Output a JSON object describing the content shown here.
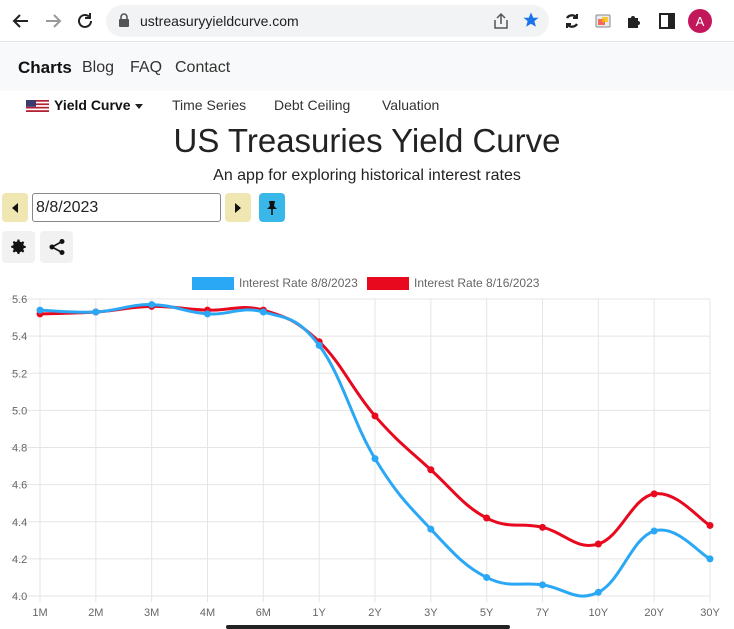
{
  "browser": {
    "url": "ustreasuryyieldcurve.com",
    "avatar_initial": "A"
  },
  "nav": {
    "brand": "Charts",
    "links": [
      "Blog",
      "FAQ",
      "Contact"
    ]
  },
  "subnav": {
    "active": "Yield Curve",
    "items": [
      "Time Series",
      "Debt Ceiling",
      "Valuation"
    ]
  },
  "page": {
    "title": "US Treasuries Yield Curve",
    "subtitle": "An app for exploring historical interest rates"
  },
  "controls": {
    "date_value": "8/8/2023"
  },
  "colors": {
    "series1": "#2ba8f5",
    "series2": "#e8091e",
    "grid": "#e5e5e5"
  },
  "chart_data": {
    "type": "line",
    "categories": [
      "1M",
      "2M",
      "3M",
      "4M",
      "6M",
      "1Y",
      "2Y",
      "3Y",
      "5Y",
      "7Y",
      "10Y",
      "20Y",
      "30Y"
    ],
    "ylim": [
      4.0,
      5.6
    ],
    "yticks": [
      "4.0",
      "4.2",
      "4.4",
      "4.6",
      "4.8",
      "5.0",
      "5.2",
      "5.4",
      "5.6"
    ],
    "grid": true,
    "legend_position": "top",
    "series": [
      {
        "name": "Interest Rate 8/8/2023",
        "values": [
          5.54,
          5.53,
          5.57,
          5.52,
          5.53,
          5.35,
          4.74,
          4.36,
          4.1,
          4.06,
          4.02,
          4.35,
          4.2
        ]
      },
      {
        "name": "Interest Rate 8/16/2023",
        "values": [
          5.52,
          5.53,
          5.56,
          5.54,
          5.54,
          5.37,
          4.97,
          4.68,
          4.42,
          4.37,
          4.28,
          4.55,
          4.38
        ]
      }
    ]
  }
}
